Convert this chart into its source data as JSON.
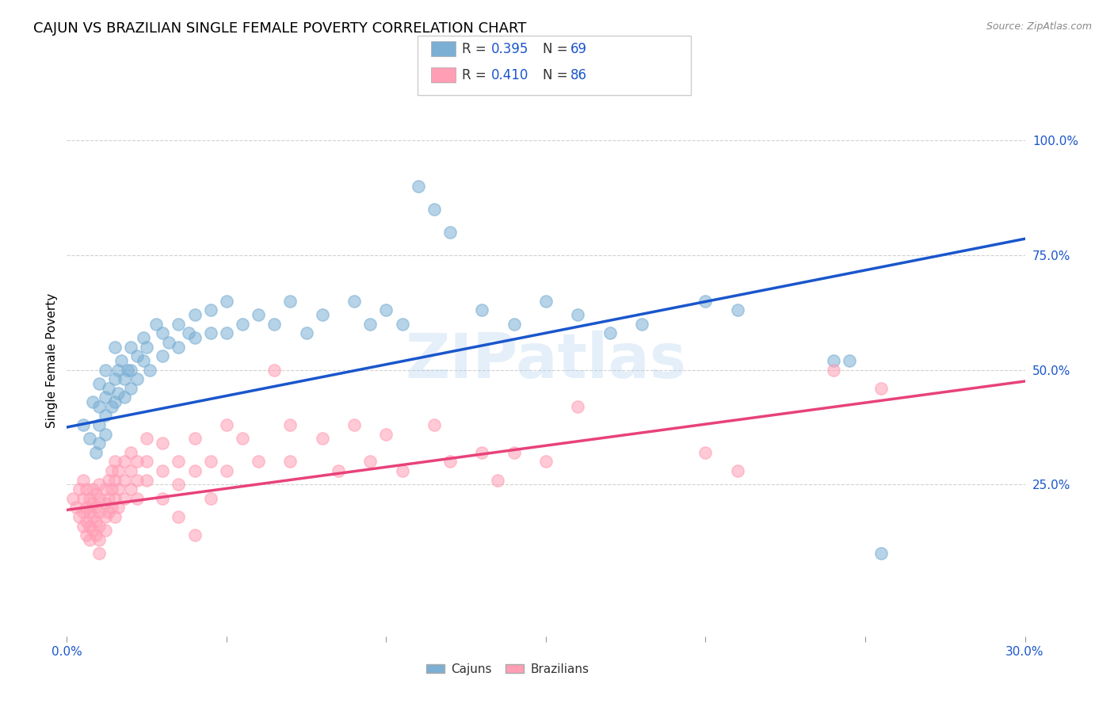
{
  "title": "CAJUN VS BRAZILIAN SINGLE FEMALE POVERTY CORRELATION CHART",
  "source": "Source: ZipAtlas.com",
  "ylabel": "Single Female Poverty",
  "xlim": [
    0.0,
    0.3
  ],
  "ylim": [
    -0.08,
    1.12
  ],
  "x_ticks": [
    0.0,
    0.05,
    0.1,
    0.15,
    0.2,
    0.25,
    0.3
  ],
  "x_tick_labels": [
    "0.0%",
    "",
    "",
    "",
    "",
    "",
    "30.0%"
  ],
  "y_ticks": [
    0.25,
    0.5,
    0.75,
    1.0
  ],
  "y_tick_labels": [
    "25.0%",
    "50.0%",
    "75.0%",
    "100.0%"
  ],
  "cajun_color": "#7BAFD4",
  "brazilian_color": "#FF9EB5",
  "cajun_line_color": "#1A56CC",
  "brazilian_line_color": "#E8427A",
  "legend_bottom_cajun": "Cajuns",
  "legend_bottom_brazilian": "Brazilians",
  "watermark": "ZIPatlas",
  "title_fontsize": 13,
  "axis_label_fontsize": 11,
  "tick_fontsize": 11,
  "tick_color": "#1A56CC",
  "cajun_line_y0": 0.375,
  "cajun_line_y1": 0.785,
  "brazilian_line_y0": 0.195,
  "brazilian_line_y1": 0.475,
  "cajun_points": [
    [
      0.005,
      0.38
    ],
    [
      0.007,
      0.35
    ],
    [
      0.008,
      0.43
    ],
    [
      0.009,
      0.32
    ],
    [
      0.01,
      0.47
    ],
    [
      0.01,
      0.42
    ],
    [
      0.01,
      0.38
    ],
    [
      0.01,
      0.34
    ],
    [
      0.012,
      0.5
    ],
    [
      0.012,
      0.44
    ],
    [
      0.012,
      0.4
    ],
    [
      0.012,
      0.36
    ],
    [
      0.013,
      0.46
    ],
    [
      0.014,
      0.42
    ],
    [
      0.015,
      0.55
    ],
    [
      0.015,
      0.48
    ],
    [
      0.015,
      0.43
    ],
    [
      0.016,
      0.5
    ],
    [
      0.016,
      0.45
    ],
    [
      0.017,
      0.52
    ],
    [
      0.018,
      0.48
    ],
    [
      0.018,
      0.44
    ],
    [
      0.019,
      0.5
    ],
    [
      0.02,
      0.55
    ],
    [
      0.02,
      0.5
    ],
    [
      0.02,
      0.46
    ],
    [
      0.022,
      0.53
    ],
    [
      0.022,
      0.48
    ],
    [
      0.024,
      0.57
    ],
    [
      0.024,
      0.52
    ],
    [
      0.025,
      0.55
    ],
    [
      0.026,
      0.5
    ],
    [
      0.028,
      0.6
    ],
    [
      0.03,
      0.58
    ],
    [
      0.03,
      0.53
    ],
    [
      0.032,
      0.56
    ],
    [
      0.035,
      0.6
    ],
    [
      0.035,
      0.55
    ],
    [
      0.038,
      0.58
    ],
    [
      0.04,
      0.62
    ],
    [
      0.04,
      0.57
    ],
    [
      0.045,
      0.63
    ],
    [
      0.045,
      0.58
    ],
    [
      0.05,
      0.65
    ],
    [
      0.05,
      0.58
    ],
    [
      0.055,
      0.6
    ],
    [
      0.06,
      0.62
    ],
    [
      0.065,
      0.6
    ],
    [
      0.07,
      0.65
    ],
    [
      0.075,
      0.58
    ],
    [
      0.08,
      0.62
    ],
    [
      0.09,
      0.65
    ],
    [
      0.095,
      0.6
    ],
    [
      0.1,
      0.63
    ],
    [
      0.105,
      0.6
    ],
    [
      0.11,
      0.9
    ],
    [
      0.115,
      0.85
    ],
    [
      0.12,
      0.8
    ],
    [
      0.13,
      0.63
    ],
    [
      0.14,
      0.6
    ],
    [
      0.15,
      0.65
    ],
    [
      0.16,
      0.62
    ],
    [
      0.17,
      0.58
    ],
    [
      0.18,
      0.6
    ],
    [
      0.2,
      0.65
    ],
    [
      0.21,
      0.63
    ],
    [
      0.24,
      0.52
    ],
    [
      0.245,
      0.52
    ],
    [
      0.255,
      0.1
    ]
  ],
  "brazilian_points": [
    [
      0.002,
      0.22
    ],
    [
      0.003,
      0.2
    ],
    [
      0.004,
      0.24
    ],
    [
      0.004,
      0.18
    ],
    [
      0.005,
      0.26
    ],
    [
      0.005,
      0.22
    ],
    [
      0.005,
      0.19
    ],
    [
      0.005,
      0.16
    ],
    [
      0.006,
      0.24
    ],
    [
      0.006,
      0.2
    ],
    [
      0.006,
      0.17
    ],
    [
      0.006,
      0.14
    ],
    [
      0.007,
      0.22
    ],
    [
      0.007,
      0.19
    ],
    [
      0.007,
      0.16
    ],
    [
      0.007,
      0.13
    ],
    [
      0.008,
      0.24
    ],
    [
      0.008,
      0.21
    ],
    [
      0.008,
      0.18
    ],
    [
      0.008,
      0.15
    ],
    [
      0.009,
      0.23
    ],
    [
      0.009,
      0.2
    ],
    [
      0.009,
      0.17
    ],
    [
      0.009,
      0.14
    ],
    [
      0.01,
      0.25
    ],
    [
      0.01,
      0.22
    ],
    [
      0.01,
      0.19
    ],
    [
      0.01,
      0.16
    ],
    [
      0.01,
      0.13
    ],
    [
      0.01,
      0.1
    ],
    [
      0.012,
      0.24
    ],
    [
      0.012,
      0.21
    ],
    [
      0.012,
      0.18
    ],
    [
      0.012,
      0.15
    ],
    [
      0.013,
      0.26
    ],
    [
      0.013,
      0.22
    ],
    [
      0.013,
      0.19
    ],
    [
      0.014,
      0.28
    ],
    [
      0.014,
      0.24
    ],
    [
      0.014,
      0.2
    ],
    [
      0.015,
      0.3
    ],
    [
      0.015,
      0.26
    ],
    [
      0.015,
      0.22
    ],
    [
      0.015,
      0.18
    ],
    [
      0.016,
      0.28
    ],
    [
      0.016,
      0.24
    ],
    [
      0.016,
      0.2
    ],
    [
      0.018,
      0.3
    ],
    [
      0.018,
      0.26
    ],
    [
      0.018,
      0.22
    ],
    [
      0.02,
      0.32
    ],
    [
      0.02,
      0.28
    ],
    [
      0.02,
      0.24
    ],
    [
      0.022,
      0.3
    ],
    [
      0.022,
      0.26
    ],
    [
      0.022,
      0.22
    ],
    [
      0.025,
      0.35
    ],
    [
      0.025,
      0.3
    ],
    [
      0.025,
      0.26
    ],
    [
      0.03,
      0.34
    ],
    [
      0.03,
      0.28
    ],
    [
      0.03,
      0.22
    ],
    [
      0.035,
      0.3
    ],
    [
      0.035,
      0.25
    ],
    [
      0.035,
      0.18
    ],
    [
      0.04,
      0.35
    ],
    [
      0.04,
      0.28
    ],
    [
      0.04,
      0.14
    ],
    [
      0.045,
      0.3
    ],
    [
      0.045,
      0.22
    ],
    [
      0.05,
      0.38
    ],
    [
      0.05,
      0.28
    ],
    [
      0.055,
      0.35
    ],
    [
      0.06,
      0.3
    ],
    [
      0.065,
      0.5
    ],
    [
      0.07,
      0.38
    ],
    [
      0.07,
      0.3
    ],
    [
      0.08,
      0.35
    ],
    [
      0.085,
      0.28
    ],
    [
      0.09,
      0.38
    ],
    [
      0.095,
      0.3
    ],
    [
      0.1,
      0.36
    ],
    [
      0.105,
      0.28
    ],
    [
      0.115,
      0.38
    ],
    [
      0.12,
      0.3
    ],
    [
      0.13,
      0.32
    ],
    [
      0.135,
      0.26
    ],
    [
      0.14,
      0.32
    ],
    [
      0.15,
      0.3
    ],
    [
      0.16,
      0.42
    ],
    [
      0.2,
      0.32
    ],
    [
      0.21,
      0.28
    ],
    [
      0.24,
      0.5
    ],
    [
      0.255,
      0.46
    ]
  ]
}
